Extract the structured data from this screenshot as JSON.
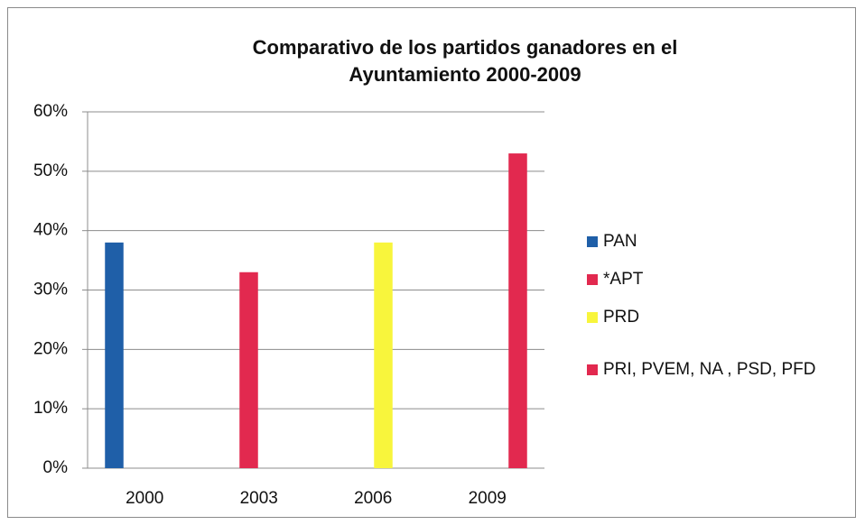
{
  "chart_data": {
    "type": "bar",
    "title": "Comparativo de los partidos ganadores en el Ayuntamiento 2000-2009",
    "categories": [
      "2000",
      "2003",
      "2006",
      "2009"
    ],
    "series": [
      {
        "name": "PAN",
        "color": "#1f5fa8",
        "values": [
          38,
          null,
          null,
          null
        ]
      },
      {
        "name": "*APT",
        "color": "#e2294f",
        "values": [
          null,
          33,
          null,
          null
        ]
      },
      {
        "name": "PRD",
        "color": "#f8f53c",
        "values": [
          null,
          null,
          38,
          null
        ]
      },
      {
        "name": "PRI, PVEM, NA , PSD, PFD",
        "color": "#e2294f",
        "values": [
          null,
          null,
          null,
          53
        ]
      }
    ],
    "ylim": [
      0,
      60
    ],
    "yticks": [
      {
        "value": 0,
        "label": "0%"
      },
      {
        "value": 10,
        "label": "10%"
      },
      {
        "value": 20,
        "label": "20%"
      },
      {
        "value": 30,
        "label": "30%"
      },
      {
        "value": 40,
        "label": "40%"
      },
      {
        "value": 50,
        "label": "50%"
      },
      {
        "value": 60,
        "label": "60%"
      }
    ],
    "grid": true,
    "legend": "right"
  }
}
